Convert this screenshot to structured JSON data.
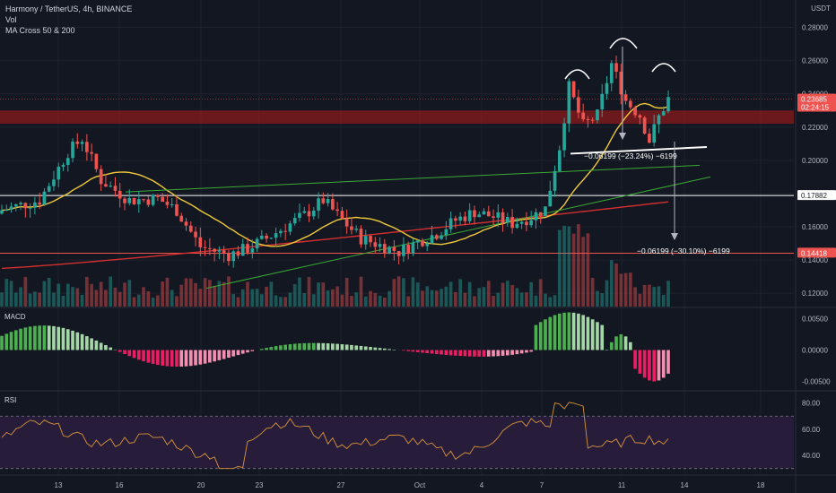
{
  "header": {
    "symbol_line": "Harmony / TetherUS, 4h, BINANCE",
    "indicator_vol": "Vol",
    "indicator_ma": "MA Cross 50 & 200",
    "currency": "USDT"
  },
  "colors": {
    "bg": "#131722",
    "grid": "#1e222d",
    "up": "#26a69a",
    "down": "#ef5350",
    "ma50": "#f0c93a",
    "ma200": "#d32f2f",
    "trend": "#3aa935",
    "rsi": "#d8943a",
    "rsi_band": "#2a1d3c",
    "macd_up": "#4caf50",
    "macd_down": "#e91e63",
    "resistance": "#b71c1c"
  },
  "chart_data": {
    "type": "candlestick",
    "title": "Harmony / TetherUS, 4h, BINANCE",
    "x_ticks": [
      "13",
      "16",
      "20",
      "23",
      "27",
      "Oct",
      "4",
      "7",
      "11",
      "14",
      "18"
    ],
    "y_ticks": [
      "0.28000",
      "0.26000",
      "0.24000",
      "0.22000",
      "0.20000",
      "0.18000",
      "0.16000",
      "0.14000",
      "0.12000"
    ],
    "ylim": [
      0.112,
      0.29
    ],
    "price_labels": [
      {
        "value": 0.23685,
        "text": "0.23685",
        "sub": "02:24:15",
        "color": "#ef5350"
      },
      {
        "value": 0.17882,
        "text": "0.17882",
        "color": "#ffffff"
      },
      {
        "value": 0.14418,
        "text": "0.14418",
        "color": "#ef5350"
      }
    ],
    "annotations": [
      {
        "text": "−0.06199 (−23.24%) −6199"
      },
      {
        "text": "−0.06199 (−30.10%) −6199"
      }
    ],
    "close_path": [
      [
        0,
        0.17
      ],
      [
        8,
        0.176
      ],
      [
        14,
        0.205
      ],
      [
        17,
        0.213
      ],
      [
        21,
        0.188
      ],
      [
        27,
        0.176
      ],
      [
        33,
        0.177
      ],
      [
        37,
        0.17
      ],
      [
        42,
        0.148
      ],
      [
        48,
        0.143
      ],
      [
        52,
        0.147
      ],
      [
        56,
        0.153
      ],
      [
        60,
        0.16
      ],
      [
        64,
        0.167
      ],
      [
        68,
        0.176
      ],
      [
        72,
        0.164
      ],
      [
        76,
        0.153
      ],
      [
        80,
        0.149
      ],
      [
        84,
        0.145
      ],
      [
        88,
        0.151
      ],
      [
        92,
        0.156
      ],
      [
        96,
        0.164
      ],
      [
        100,
        0.169
      ],
      [
        104,
        0.166
      ],
      [
        108,
        0.162
      ],
      [
        112,
        0.166
      ],
      [
        115,
        0.171
      ],
      [
        118,
        0.208
      ],
      [
        120,
        0.244
      ],
      [
        123,
        0.221
      ],
      [
        126,
        0.227
      ],
      [
        129,
        0.258
      ],
      [
        132,
        0.236
      ],
      [
        135,
        0.227
      ],
      [
        137,
        0.212
      ],
      [
        139,
        0.226
      ],
      [
        141,
        0.237
      ]
    ],
    "macd": {
      "ylim": [
        -0.0065,
        0.0065
      ],
      "y_ticks": [
        "0.00500",
        "0.00000",
        "-0.00500"
      ]
    },
    "rsi": {
      "ylim": [
        25,
        88
      ],
      "band": [
        30,
        70
      ],
      "y_ticks": [
        "80.00",
        "60.00",
        "40.00"
      ]
    }
  }
}
